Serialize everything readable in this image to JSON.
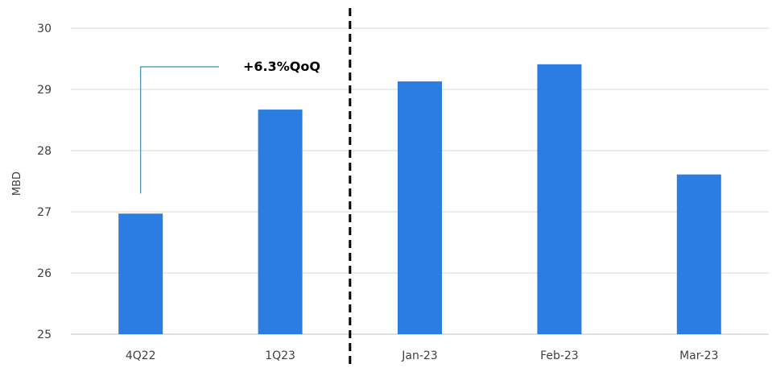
{
  "chart_data": {
    "type": "bar",
    "title": "",
    "xlabel": "",
    "ylabel": "MBD",
    "categories": [
      "4Q22",
      "1Q23",
      "Jan-23",
      "Feb-23",
      "Mar-23"
    ],
    "values": [
      26.97,
      28.67,
      29.13,
      29.41,
      27.61
    ],
    "ylim": [
      25,
      30
    ],
    "yticks": [
      25,
      26,
      27,
      28,
      29,
      30
    ],
    "grid": true,
    "legend": "none",
    "bar_color": "#2b7de1",
    "divider_after_category": "1Q23",
    "annotation": {
      "text": "+6.3%QoQ",
      "from": "4Q22",
      "to": "1Q23"
    }
  }
}
